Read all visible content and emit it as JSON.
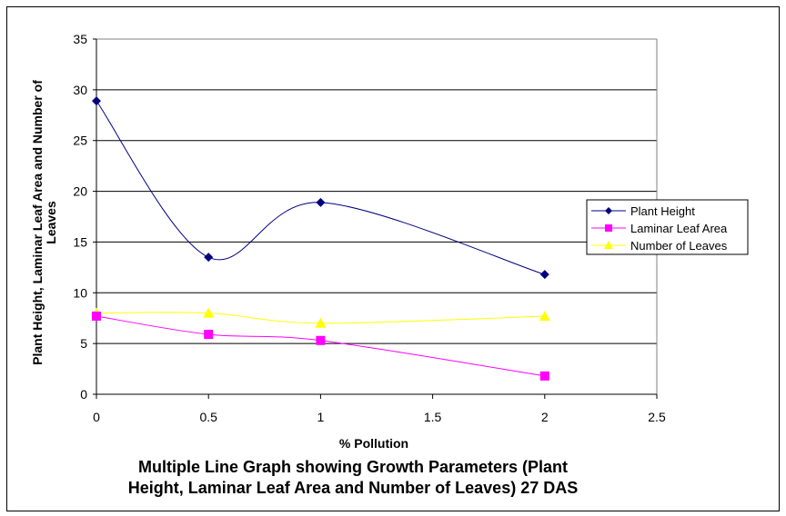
{
  "chart_data": {
    "type": "line",
    "title_lines": [
      "Multiple Line Graph showing Growth Parameters (Plant",
      "Height, Laminar Leaf Area and Number of Leaves) 27 DAS"
    ],
    "xlabel": "% Pollution",
    "ylabel_lines": [
      "Plant Height, Laminar Leaf Area and Number of",
      "Leaves"
    ],
    "xlim": [
      0,
      2.5
    ],
    "ylim": [
      0,
      35
    ],
    "x_ticks": [
      "0",
      "0.5",
      "1",
      "1.5",
      "2",
      "2.5"
    ],
    "y_ticks": [
      "0",
      "5",
      "10",
      "15",
      "20",
      "25",
      "30",
      "35"
    ],
    "grid": "horizontal",
    "smoothed": true,
    "legend_position": "right",
    "x": [
      0,
      0.5,
      1,
      2
    ],
    "series": [
      {
        "name": "Plant Height",
        "color": "#000080",
        "marker": "diamond",
        "values": [
          28.9,
          13.5,
          18.9,
          11.8
        ]
      },
      {
        "name": "Laminar Leaf Area",
        "color": "#FF00FF",
        "marker": "square",
        "values": [
          7.7,
          5.9,
          5.3,
          1.8
        ]
      },
      {
        "name": "Number of Leaves",
        "color": "#FFFF00",
        "marker": "triangle",
        "values": [
          8.0,
          8.0,
          7.0,
          7.7
        ]
      }
    ]
  }
}
